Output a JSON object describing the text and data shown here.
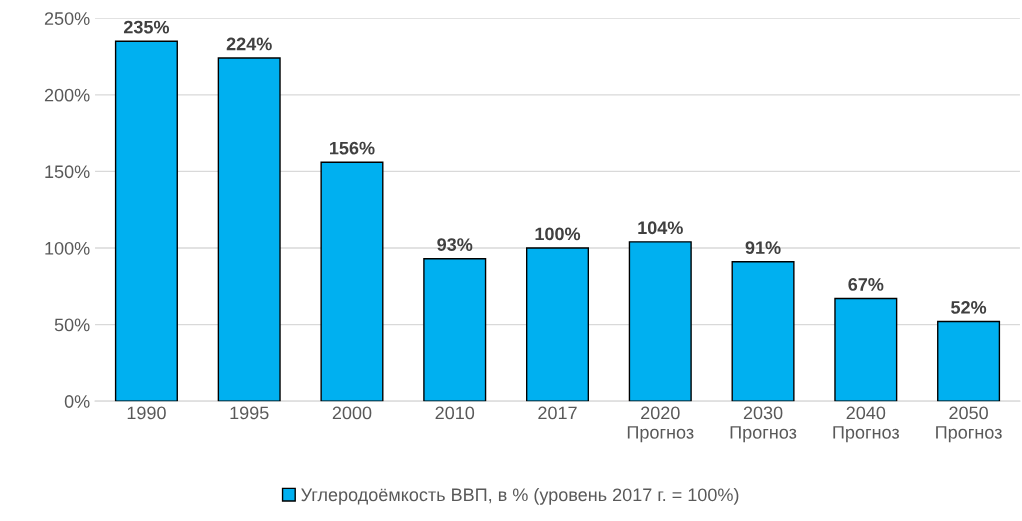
{
  "chart_data": {
    "type": "bar",
    "categories": [
      "1990",
      "1995",
      "2000",
      "2010",
      "2017",
      "2020\nПрогноз",
      "2030\nПрогноз",
      "2040\nПрогноз",
      "2050\nПрогноз"
    ],
    "series": [
      {
        "name": "Углеродоёмкость ВВП, в % (уровень 2017 г. = 100%)",
        "color": "#00b0f0",
        "values": [
          235,
          224,
          156,
          93,
          100,
          104,
          91,
          67,
          52
        ],
        "value_labels": [
          "235%",
          "224%",
          "156%",
          "93%",
          "100%",
          "104%",
          "91%",
          "67%",
          "52%"
        ]
      }
    ],
    "ylim": [
      0,
      250
    ],
    "yticks": [
      {
        "value": 0,
        "label": "0%"
      },
      {
        "value": 50,
        "label": "50%"
      },
      {
        "value": 100,
        "label": "100%"
      },
      {
        "value": 150,
        "label": "150%"
      },
      {
        "value": 200,
        "label": "200%"
      },
      {
        "value": 250,
        "label": "250%"
      }
    ],
    "grid": "y",
    "legend": "bottom"
  }
}
